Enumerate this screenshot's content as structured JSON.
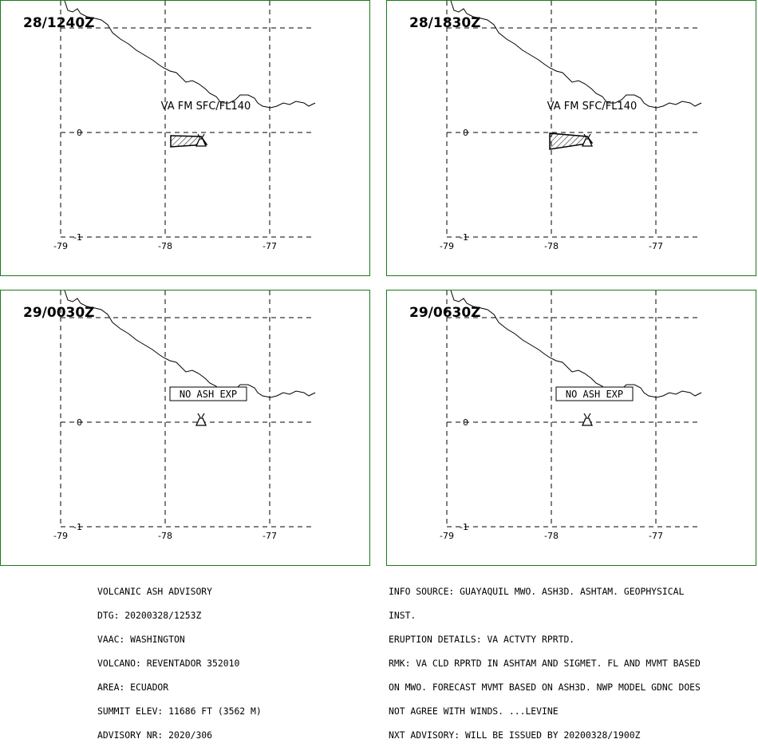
{
  "panels": [
    {
      "time": "28/1240Z",
      "label": "VA FM SFC/FL140",
      "ash": true
    },
    {
      "time": "28/1830Z",
      "label": "VA FM SFC/FL140",
      "ash": true
    },
    {
      "time": "29/0030Z",
      "label": "NO ASH EXP",
      "ash": false
    },
    {
      "time": "29/0630Z",
      "label": "NO ASH EXP",
      "ash": false
    }
  ],
  "axes": {
    "lon_ticks": [
      "-79",
      "-78",
      "-77"
    ],
    "lat_ticks": [
      "0",
      "-1"
    ]
  },
  "advisory_left": [
    "VOLCANIC ASH ADVISORY",
    "DTG: 20200328/1253Z",
    "VAAC: WASHINGTON",
    "VOLCANO: REVENTADOR 352010",
    "AREA: ECUADOR",
    "SUMMIT ELEV: 11686 FT (3562 M)",
    "ADVISORY NR: 2020/306"
  ],
  "advisory_right": [
    "INFO SOURCE: GUAYAQUIL MWO. ASH3D. ASHTAM. GEOPHYSICAL",
    "INST.",
    "ERUPTION DETAILS: VA ACTVTY RPRTD.",
    "RMK: VA CLD RPRTD IN ASHTAM AND SIGMET. FL AND MVMT BASED",
    "ON MWO. FORECAST MVMT BASED ON ASH3D. NWP MODEL GDNC DOES",
    "NOT AGREE WITH WINDS. ...LEVINE",
    "NXT ADVISORY: WILL BE ISSUED BY 20200328/1900Z"
  ],
  "colors": {
    "border": "#1a7a1a",
    "ink": "#000000"
  },
  "icons": {
    "volcano": "volcano-icon"
  }
}
